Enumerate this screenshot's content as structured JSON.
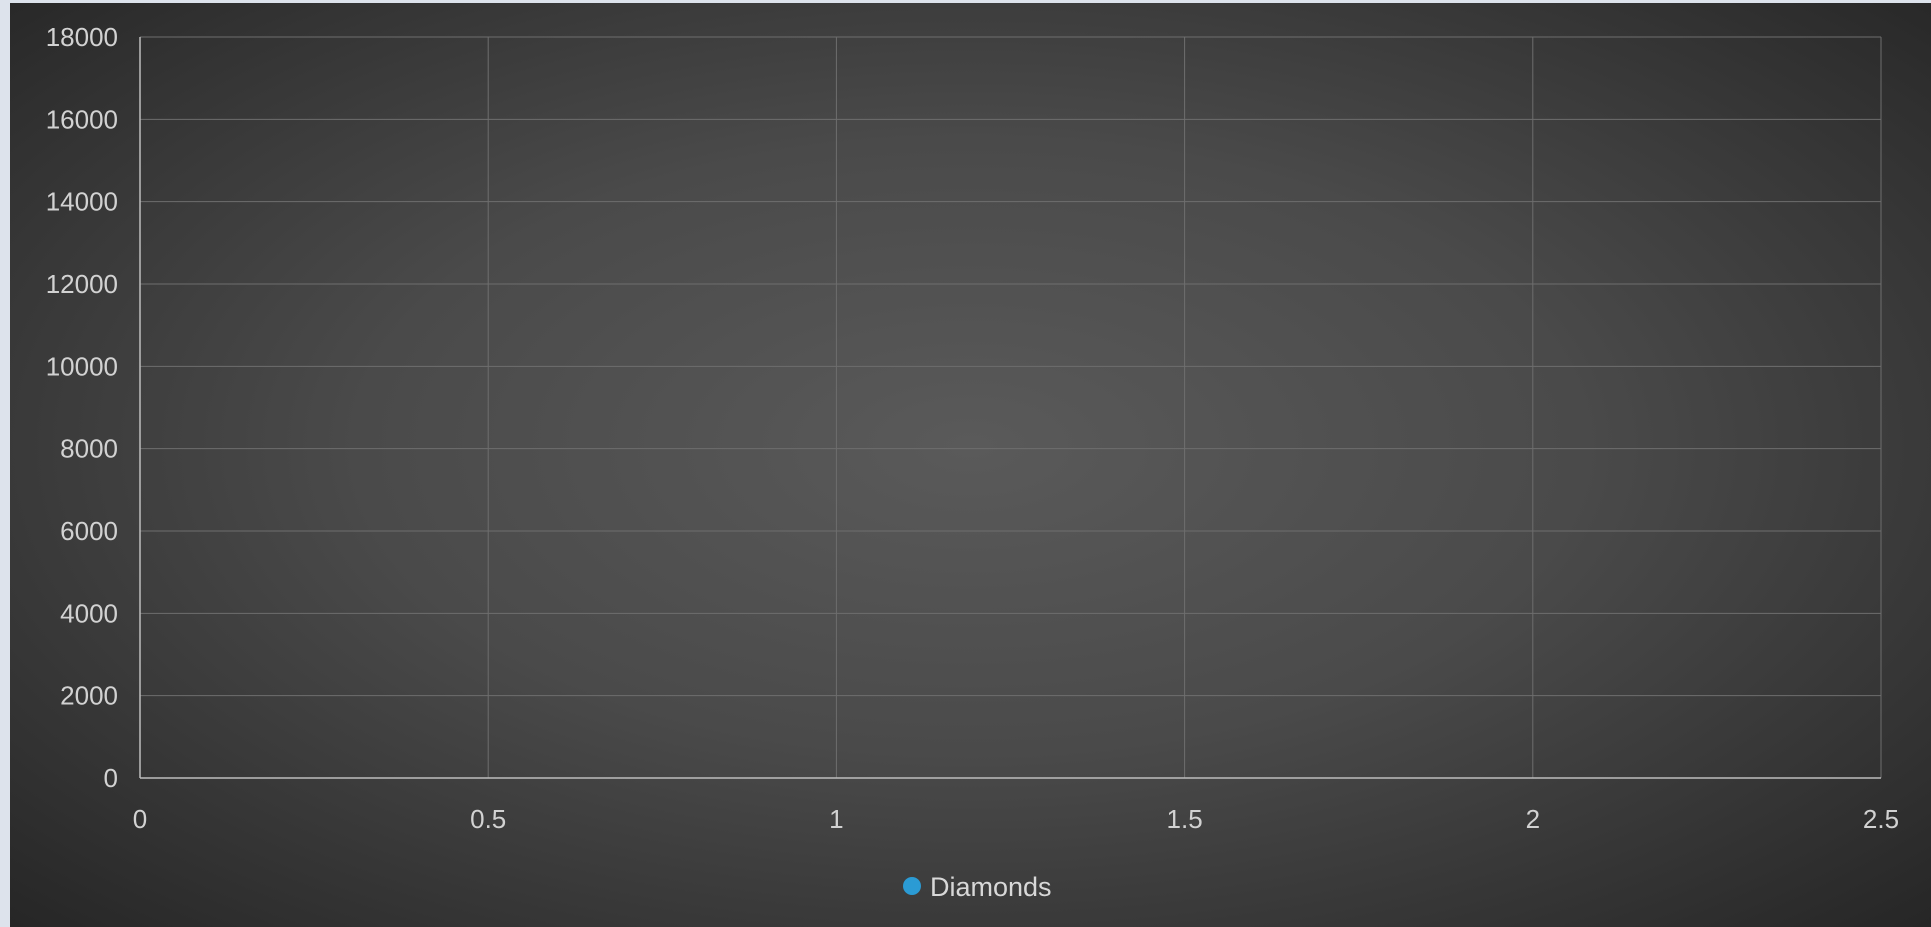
{
  "chart_data": {
    "type": "scatter",
    "title": "",
    "xlabel": "",
    "ylabel": "",
    "xlim": [
      0,
      2.5
    ],
    "ylim": [
      0,
      18000
    ],
    "x_ticks": [
      "0",
      "0.5",
      "1",
      "1.5",
      "2",
      "2.5"
    ],
    "y_ticks": [
      "0",
      "2000",
      "4000",
      "6000",
      "8000",
      "10000",
      "12000",
      "14000",
      "16000",
      "18000"
    ],
    "grid": true,
    "legend_position": "bottom",
    "series": [
      {
        "name": "Diamonds",
        "color": "#2b9bd4",
        "points": []
      }
    ]
  },
  "legend": {
    "label": "Diamonds",
    "marker_color": "#2b9bd4"
  },
  "colors": {
    "gridline": "#6e6e6e",
    "axis": "#bdbdbd",
    "tick_text": "#d2d2d2"
  }
}
